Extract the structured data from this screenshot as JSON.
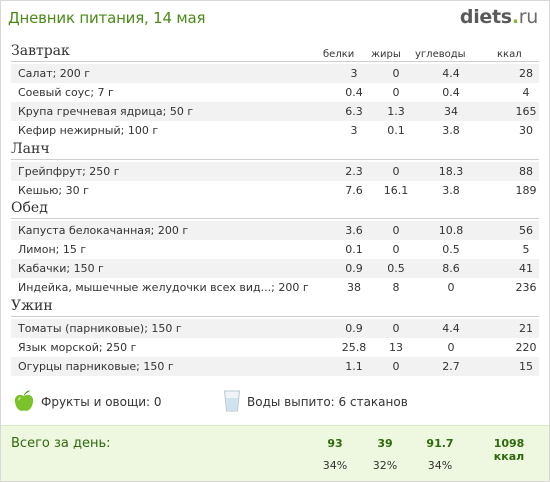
{
  "header": {
    "title": "Дневник питания, 14 мая",
    "logo_main": "diets",
    "logo_dot": ".",
    "logo_tld": "ru"
  },
  "columns": [
    "белки",
    "жиры",
    "углеводы",
    "ккал"
  ],
  "meals": [
    {
      "title": "Завтрак",
      "rows": [
        {
          "name": "Салат; 200 г",
          "p": "3",
          "f": "0",
          "c": "4.4",
          "k": "28"
        },
        {
          "name": "Соевый соус; 7 г",
          "p": "0.4",
          "f": "0",
          "c": "0.4",
          "k": "4"
        },
        {
          "name": "Крупа гречневая ядрица; 50 г",
          "p": "6.3",
          "f": "1.3",
          "c": "34",
          "k": "165"
        },
        {
          "name": "Кефир нежирный; 100 г",
          "p": "3",
          "f": "0.1",
          "c": "3.8",
          "k": "30"
        }
      ]
    },
    {
      "title": "Ланч",
      "rows": [
        {
          "name": "Грейпфрут; 250 г",
          "p": "2.3",
          "f": "0",
          "c": "18.3",
          "k": "88"
        },
        {
          "name": "Кешью; 30 г",
          "p": "7.6",
          "f": "16.1",
          "c": "3.8",
          "k": "189"
        }
      ]
    },
    {
      "title": "Обед",
      "rows": [
        {
          "name": "Капуста белокачанная; 200 г",
          "p": "3.6",
          "f": "0",
          "c": "10.8",
          "k": "56"
        },
        {
          "name": "Лимон; 15 г",
          "p": "0.1",
          "f": "0",
          "c": "0.5",
          "k": "5"
        },
        {
          "name": "Кабачки; 150 г",
          "p": "0.9",
          "f": "0.5",
          "c": "8.6",
          "k": "41"
        },
        {
          "name": "Индейка, мышечные желудочки всех вид...; 200 г",
          "p": "38",
          "f": "8",
          "c": "0",
          "k": "236"
        }
      ]
    },
    {
      "title": "Ужин",
      "rows": [
        {
          "name": "Томаты (парниковые); 150 г",
          "p": "0.9",
          "f": "0",
          "c": "4.4",
          "k": "21"
        },
        {
          "name": "Язык морской; 250 г",
          "p": "25.8",
          "f": "13",
          "c": "0",
          "k": "220"
        },
        {
          "name": "Огурцы парниковые; 150 г",
          "p": "1.1",
          "f": "0",
          "c": "2.7",
          "k": "15"
        }
      ]
    }
  ],
  "extras": {
    "fruits_label": "Фрукты и овощи: 0",
    "water_label": "Воды выпито: 6 стаканов"
  },
  "total": {
    "label": "Всего за день:",
    "protein": "93",
    "fat": "39",
    "carbs": "91.7",
    "kcal": "1098 ккал",
    "protein_pct": "34%",
    "fat_pct": "32%",
    "carbs_pct": "34%"
  },
  "colors": {
    "title_green": "#4a8a17",
    "total_bg": "#eef7df",
    "total_text": "#2e6a0c",
    "row_shade": "#f2f2f2"
  },
  "icons": {
    "fruits": "green-apple-icon",
    "water": "water-glass-icon"
  }
}
